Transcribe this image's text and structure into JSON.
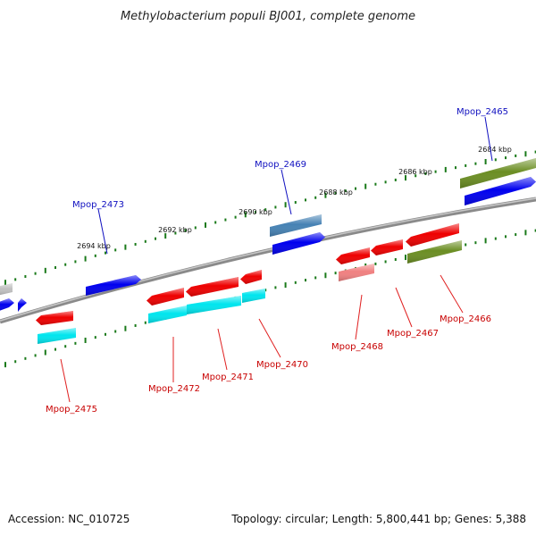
{
  "title": "Methylobacterium populi BJ001, complete genome",
  "footer": {
    "accession": "Accession: NC_010725",
    "stats": "Topology: circular; Length: 5,800,441 bp; Genes: 5,388"
  },
  "ticks": [
    "2684 kbp",
    "2686 kbp",
    "2688 kbp",
    "2690 kbp",
    "2692 kbp",
    "2694 kbp"
  ],
  "genes": [
    "Mpop_2465",
    "Mpop_2466",
    "Mpop_2467",
    "Mpop_2468",
    "Mpop_2469",
    "Mpop_2470",
    "Mpop_2471",
    "Mpop_2472",
    "Mpop_2473",
    "Mpop_2475"
  ],
  "colors": {
    "forward_cds": "#0000ee",
    "reverse_cds": "#ee0000",
    "cyan": "#00e5ee",
    "olive": "#6b8e23",
    "steelblue": "#4682b4",
    "pink": "#f08080",
    "gray": "#c0c0c0",
    "tick": "#1a7a1a",
    "backbone": "#808080",
    "label_top": "#1010c0",
    "label_bottom": "#c80000"
  }
}
